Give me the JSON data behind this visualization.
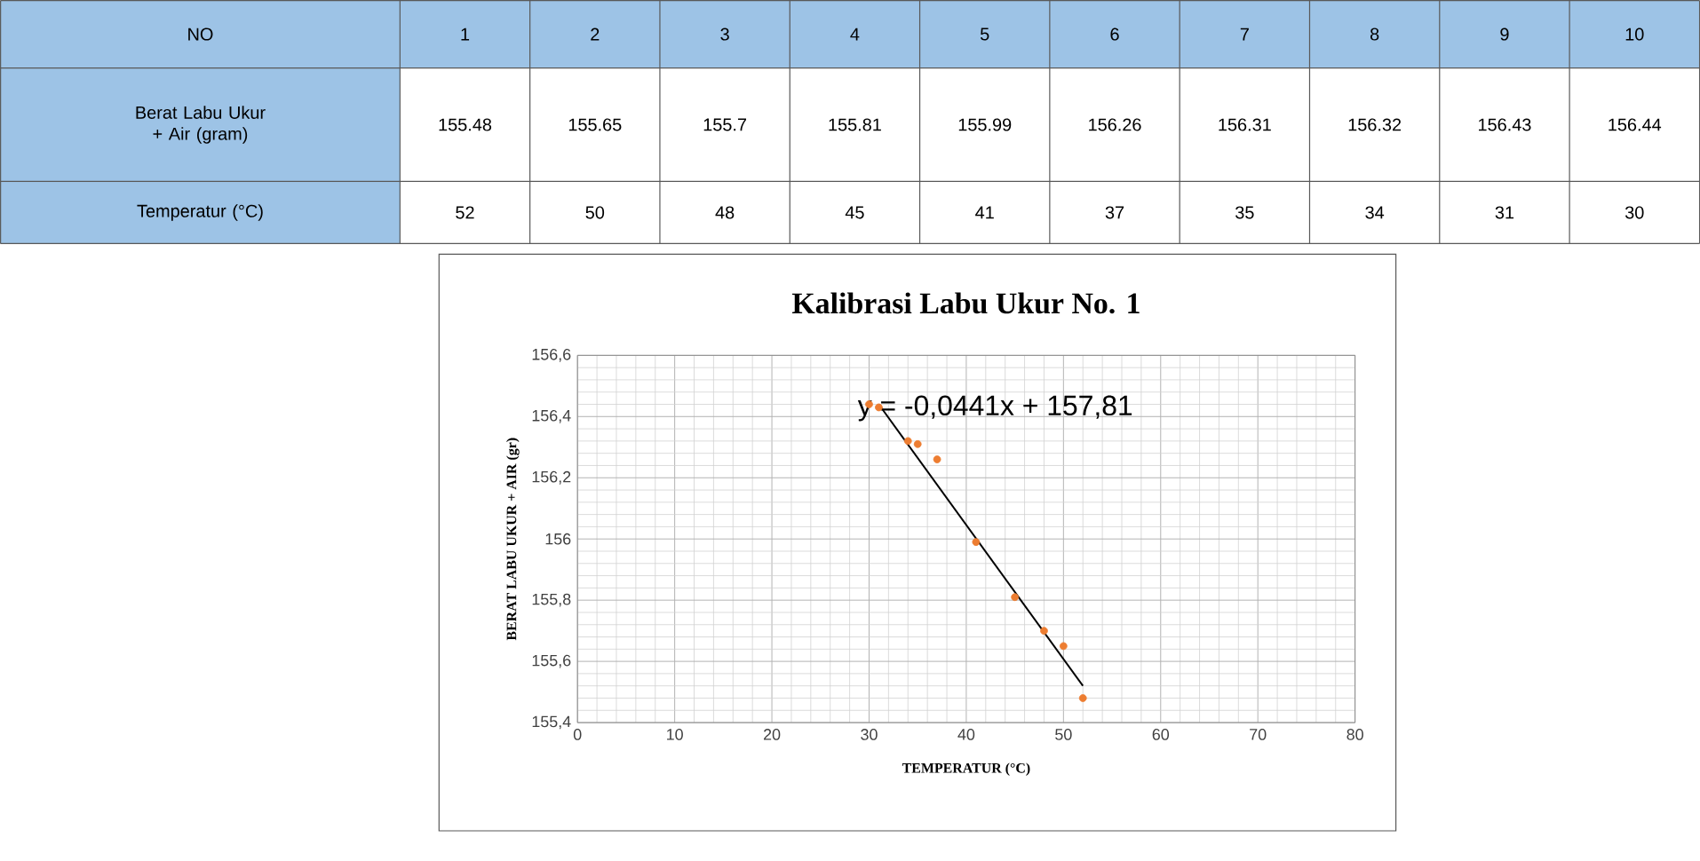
{
  "chart_data": {
    "type": "scatter",
    "title": "Kalibrasi Labu Ukur No. 1",
    "xlabel": "TEMPERATUR (°C)",
    "ylabel": "BERAT LABU  UKUR + AIR (gr)",
    "series": [
      {
        "color": "#ed7d31",
        "marker": "circle",
        "x": [
          52,
          50,
          48,
          45,
          41,
          37,
          35,
          34,
          31,
          30
        ],
        "values": [
          155.48,
          155.65,
          155.7,
          155.81,
          155.99,
          156.26,
          156.31,
          156.32,
          156.43,
          156.44
        ]
      },
      {
        "type": "line",
        "color": "#000000",
        "marker": "none",
        "line_style": "solid",
        "x": [
          31,
          52
        ],
        "values": [
          156.44,
          155.52
        ]
      }
    ],
    "xlim": [
      0,
      80
    ],
    "xticks": [
      0,
      10,
      20,
      30,
      40,
      50,
      60,
      70,
      80
    ],
    "ylim": [
      155.4,
      156.6
    ],
    "yticks": [
      {
        "value": 155.4,
        "label": "155,4"
      },
      {
        "value": 155.6,
        "label": "155,6"
      },
      {
        "value": 155.8,
        "label": "155,8"
      },
      {
        "value": 156,
        "label": "156"
      },
      {
        "value": 156.2,
        "label": "156,2"
      },
      {
        "value": 156.4,
        "label": "156,4"
      },
      {
        "value": 156.6,
        "label": "156,6"
      }
    ],
    "grid": true,
    "annotations": [
      "y = -0,0441x + 157,81",
      "NO",
      "1",
      "2",
      "3",
      "4",
      "5",
      "6",
      "7",
      "8",
      "9",
      "10",
      "Berat Labu Ukur + Air (gram)",
      "155.48",
      "155.65",
      "155.7",
      "155.81",
      "155.99",
      "156.26",
      "156.31",
      "156.32",
      "156.43",
      "156.44",
      "Temperatur (°C)",
      "52",
      "50",
      "48",
      "45",
      "41",
      "37",
      "35",
      "34",
      "31",
      "30"
    ]
  }
}
